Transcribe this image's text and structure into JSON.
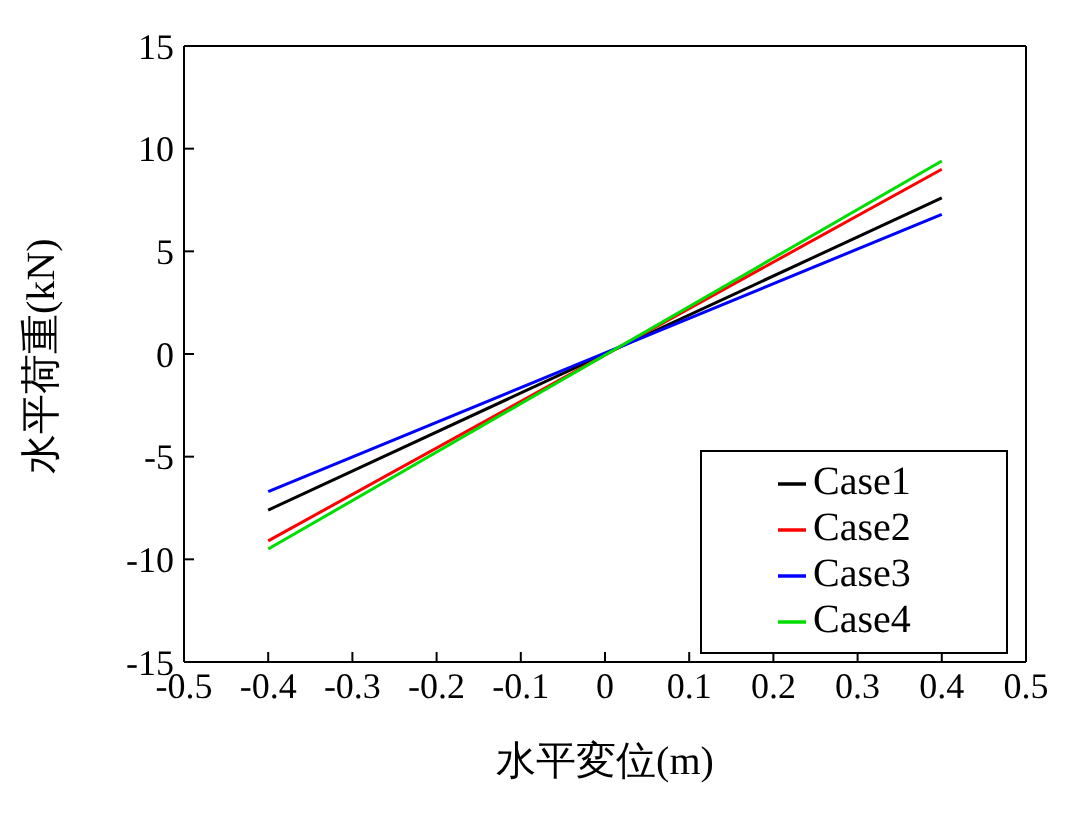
{
  "chart_data": {
    "type": "line",
    "xlabel": "水平変位(m)",
    "ylabel": "水平荷重(kN)",
    "x": [
      -0.4,
      0.4
    ],
    "series": [
      {
        "name": "Case1",
        "color": "#000000",
        "values": [
          -7.6,
          7.6
        ]
      },
      {
        "name": "Case2",
        "color": "#ff0000",
        "values": [
          -9.1,
          9.0
        ]
      },
      {
        "name": "Case3",
        "color": "#0000ff",
        "values": [
          -6.7,
          6.8
        ]
      },
      {
        "name": "Case4",
        "color": "#00dd00",
        "values": [
          -9.5,
          9.4
        ]
      }
    ],
    "xlim": [
      -0.5,
      0.5
    ],
    "xticks": [
      -0.5,
      -0.4,
      -0.3,
      -0.2,
      -0.1,
      0,
      0.1,
      0.2,
      0.3,
      0.4,
      0.5
    ],
    "ylim": [
      -15,
      15
    ],
    "yticks": [
      -15,
      -10,
      -5,
      0,
      5,
      10,
      15
    ],
    "grid": false,
    "legend": "bottom right",
    "marker": "none",
    "line_style": "solid"
  }
}
